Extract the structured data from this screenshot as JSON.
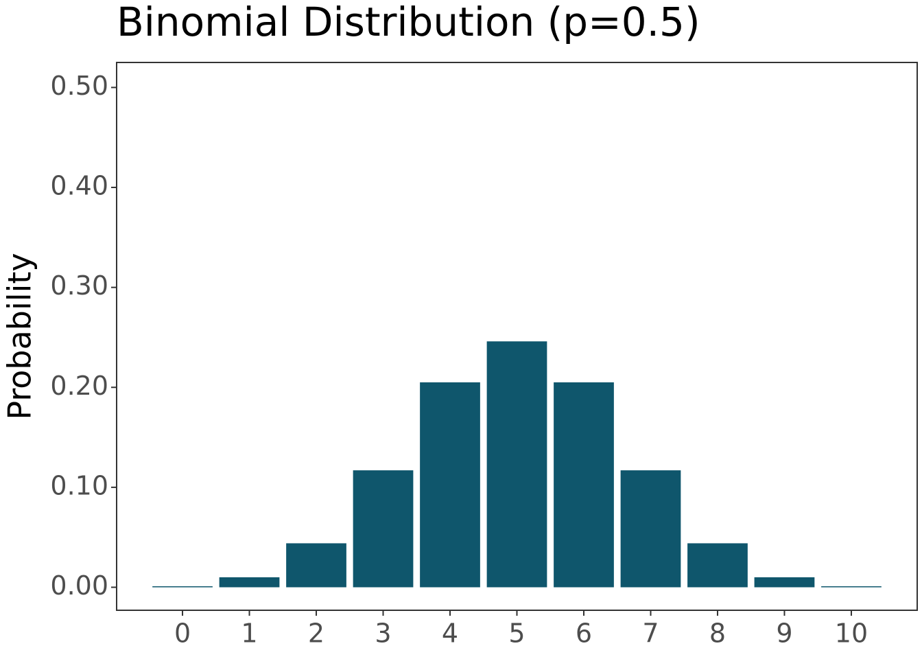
{
  "chart_data": {
    "type": "bar",
    "title": "Binomial Distribution (p=0.5)",
    "y_label": "Probability",
    "categories": [
      "0",
      "1",
      "2",
      "3",
      "4",
      "5",
      "6",
      "7",
      "8",
      "9",
      "10"
    ],
    "values": [
      0.001,
      0.01,
      0.044,
      0.117,
      0.205,
      0.246,
      0.205,
      0.117,
      0.044,
      0.01,
      0.001
    ],
    "color": "#0f566c",
    "ylim": [
      -0.023,
      0.525
    ],
    "yticks": [
      {
        "value": 0,
        "label": "0.00"
      },
      {
        "value": 0.1,
        "label": "0.10"
      },
      {
        "value": 0.2,
        "label": "0.20"
      },
      {
        "value": 0.3,
        "label": "0.30"
      },
      {
        "value": 0.4,
        "label": "0.40"
      },
      {
        "value": 0.5,
        "label": "0.50"
      }
    ],
    "grid": false
  }
}
